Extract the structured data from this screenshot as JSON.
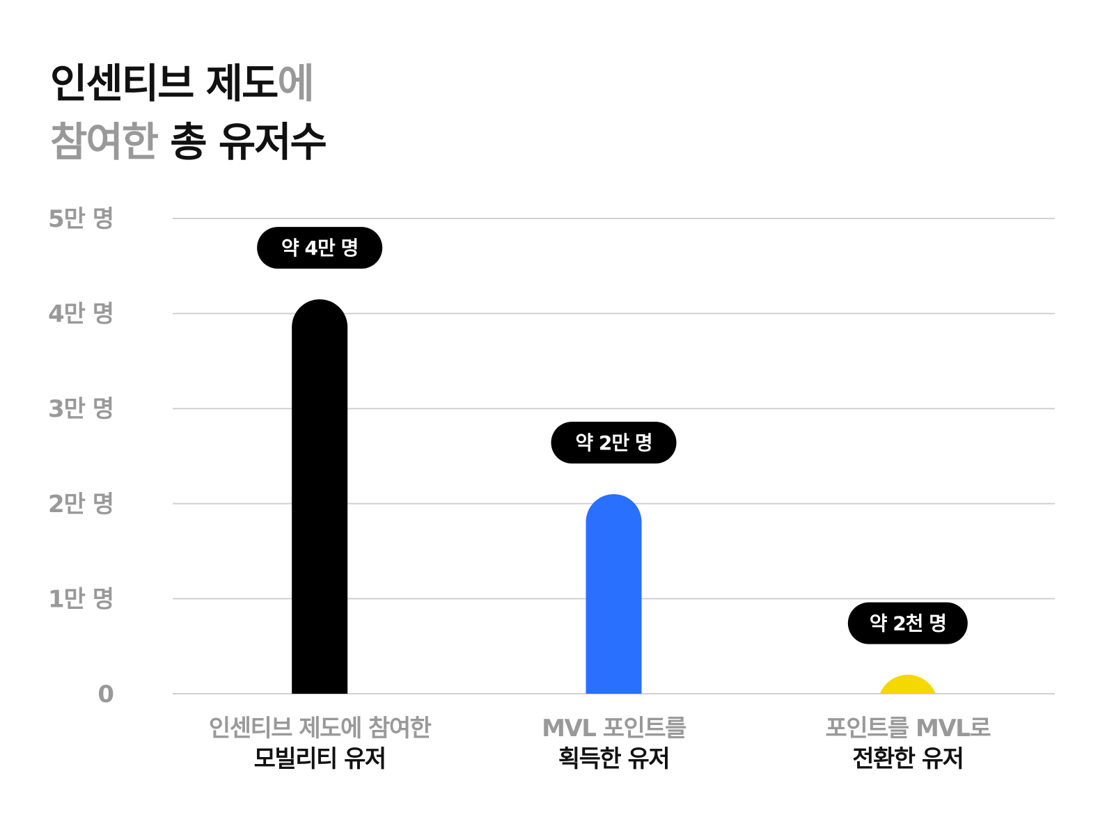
{
  "title": {
    "line1_dark": "인센티브 제도",
    "line1_gray": "에",
    "line2_gray": "참여한",
    "line2_dark": " 총 유저수"
  },
  "colors": {
    "grid": "#d0d0d0",
    "axis_text": "#999999",
    "label_dark": "#111111",
    "label_gray": "#999999",
    "badge_bg": "#000000",
    "badge_text": "#ffffff"
  },
  "chart_data": {
    "type": "bar",
    "title": "인센티브 제도에 참여한 총 유저수",
    "ylim": [
      0,
      50000
    ],
    "yticks": [
      {
        "value": 0,
        "label": "0"
      },
      {
        "value": 10000,
        "label": "1만 명"
      },
      {
        "value": 20000,
        "label": "2만 명"
      },
      {
        "value": 30000,
        "label": "3만 명"
      },
      {
        "value": 40000,
        "label": "4만 명"
      },
      {
        "value": 50000,
        "label": "5만 명"
      }
    ],
    "grid": true,
    "bars": [
      {
        "value": 41500,
        "color": "#000000",
        "badge": "약 4만 명",
        "label_gray": "인센티브 제도에 참여한",
        "label_dark": "모빌리티 유저"
      },
      {
        "value": 21000,
        "color": "#2970ff",
        "badge": "약 2만 명",
        "label_gray": "MVL 포인트를",
        "label_dark": "획득한 유저"
      },
      {
        "value": 2000,
        "color": "#f5d800",
        "badge": "약 2천 명",
        "label_gray": "포인트를 MVL로",
        "label_dark": "전환한 유저"
      }
    ]
  }
}
